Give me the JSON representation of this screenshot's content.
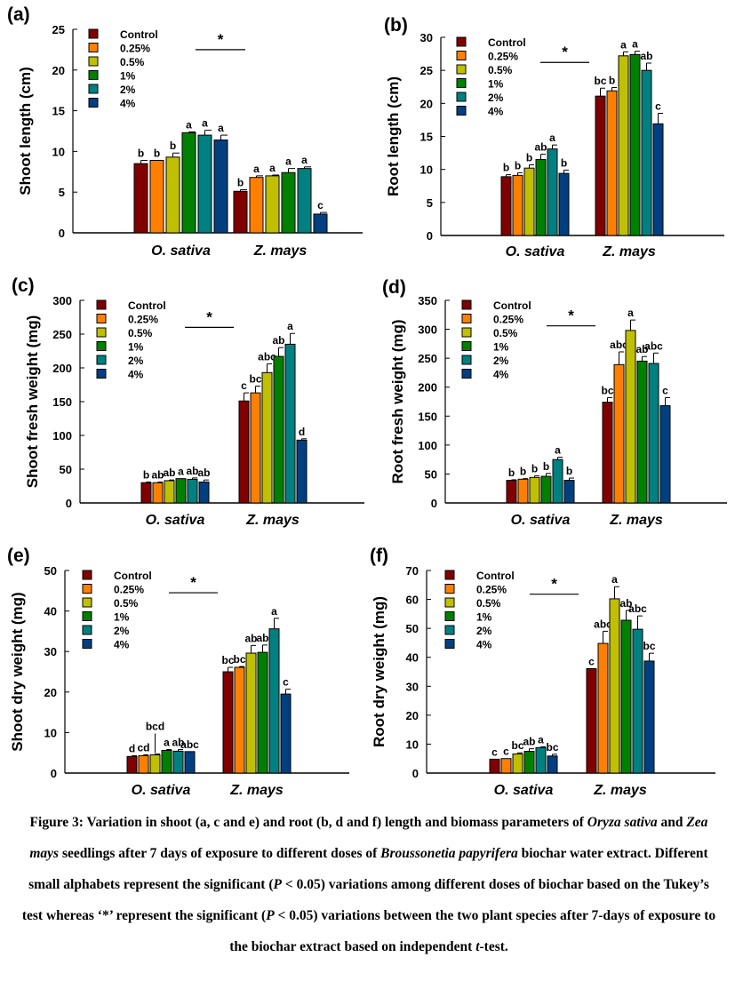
{
  "legend": {
    "entries": [
      "Control",
      "0.25%",
      "0.5%",
      "1%",
      "2%",
      "4%"
    ],
    "colors": [
      "#800000",
      "#ff8000",
      "#c0c000",
      "#008000",
      "#008080",
      "#004080"
    ]
  },
  "categories": [
    "O. sativa",
    "Z. mays"
  ],
  "between_species_marker": "*",
  "chart_data": [
    {
      "id": "a",
      "panel_label": "(a)",
      "type": "bar",
      "ylabel": "Shoot length (cm)",
      "xlabel": "",
      "ylim": [
        0,
        25
      ],
      "yticks": [
        0,
        5,
        10,
        15,
        20,
        25
      ],
      "categories": [
        "O. sativa",
        "Z. mays"
      ],
      "legend_position": "top-left",
      "series": [
        {
          "name": "Control",
          "values": [
            8.5,
            5.1
          ],
          "errors": [
            0.4,
            0.2
          ],
          "letters": [
            "b",
            "b"
          ]
        },
        {
          "name": "0.25%",
          "values": [
            8.9,
            6.8
          ],
          "errors": [
            0.0,
            0.2
          ],
          "letters": [
            "b",
            "a"
          ]
        },
        {
          "name": "0.5%",
          "values": [
            9.3,
            7.0
          ],
          "errors": [
            0.5,
            0.1
          ],
          "letters": [
            "b",
            "a"
          ]
        },
        {
          "name": "1%",
          "values": [
            12.3,
            7.4
          ],
          "errors": [
            0.1,
            0.5
          ],
          "letters": [
            "a",
            "a"
          ]
        },
        {
          "name": "2%",
          "values": [
            12.0,
            7.9
          ],
          "errors": [
            0.6,
            0.2
          ],
          "letters": [
            "a",
            "a"
          ]
        },
        {
          "name": "4%",
          "values": [
            11.4,
            2.3
          ],
          "errors": [
            0.6,
            0.2
          ],
          "letters": [
            "a",
            "c"
          ]
        }
      ],
      "star_y": 22.5
    },
    {
      "id": "b",
      "panel_label": "(b)",
      "type": "bar",
      "ylabel": "Root length (cm)",
      "xlabel": "",
      "ylim": [
        0,
        30
      ],
      "yticks": [
        0,
        5,
        10,
        15,
        20,
        25,
        30
      ],
      "categories": [
        "O. sativa",
        "Z. mays"
      ],
      "legend_position": "top-left",
      "series": [
        {
          "name": "Control",
          "values": [
            8.9,
            21.1
          ],
          "errors": [
            0.3,
            1.2
          ],
          "letters": [
            "b",
            "bc"
          ]
        },
        {
          "name": "0.25%",
          "values": [
            9.1,
            21.9
          ],
          "errors": [
            0.4,
            0.5
          ],
          "letters": [
            "b",
            "b"
          ]
        },
        {
          "name": "0.5%",
          "values": [
            10.2,
            27.2
          ],
          "errors": [
            0.5,
            0.6
          ],
          "letters": [
            "b",
            "a"
          ]
        },
        {
          "name": "1%",
          "values": [
            11.5,
            27.4
          ],
          "errors": [
            0.8,
            0.5
          ],
          "letters": [
            "ab",
            "a"
          ]
        },
        {
          "name": "2%",
          "values": [
            13.1,
            25.0
          ],
          "errors": [
            0.6,
            1.1
          ],
          "letters": [
            "a",
            "ab"
          ]
        },
        {
          "name": "4%",
          "values": [
            9.4,
            16.9
          ],
          "errors": [
            0.5,
            1.6
          ],
          "letters": [
            "b",
            "c"
          ]
        }
      ],
      "star_y": 26.2
    },
    {
      "id": "c",
      "panel_label": "(c)",
      "type": "bar",
      "ylabel": "Shoot fresh weight (mg)",
      "xlabel": "",
      "ylim": [
        0,
        300
      ],
      "yticks": [
        0,
        50,
        100,
        150,
        200,
        250,
        300
      ],
      "categories": [
        "O. sativa",
        "Z. mays"
      ],
      "legend_position": "top-left",
      "series": [
        {
          "name": "Control",
          "values": [
            30,
            151
          ],
          "errors": [
            1,
            12
          ],
          "letters": [
            "b",
            "c"
          ]
        },
        {
          "name": "0.25%",
          "values": [
            30,
            163
          ],
          "errors": [
            1,
            10
          ],
          "letters": [
            "ab",
            "bc"
          ]
        },
        {
          "name": "0.5%",
          "values": [
            33,
            193
          ],
          "errors": [
            1,
            13
          ],
          "letters": [
            "ab",
            "abc"
          ]
        },
        {
          "name": "1%",
          "values": [
            36,
            217
          ],
          "errors": [
            0,
            13
          ],
          "letters": [
            "a",
            "ab"
          ]
        },
        {
          "name": "2%",
          "values": [
            35,
            235
          ],
          "errors": [
            2,
            16
          ],
          "letters": [
            "ab",
            "a"
          ]
        },
        {
          "name": "4%",
          "values": [
            31,
            93
          ],
          "errors": [
            3,
            2
          ],
          "letters": [
            "ab",
            "d"
          ]
        }
      ],
      "star_y": 260
    },
    {
      "id": "d",
      "panel_label": "(d)",
      "type": "bar",
      "ylabel": "Root fresh weight (mg)",
      "xlabel": "",
      "ylim": [
        0,
        350
      ],
      "yticks": [
        0,
        50,
        100,
        150,
        200,
        250,
        300,
        350
      ],
      "categories": [
        "O. sativa",
        "Z. mays"
      ],
      "legend_position": "top-left",
      "series": [
        {
          "name": "Control",
          "values": [
            39,
            174
          ],
          "errors": [
            1,
            8
          ],
          "letters": [
            "b",
            "bc"
          ]
        },
        {
          "name": "0.25%",
          "values": [
            41,
            239
          ],
          "errors": [
            1,
            22
          ],
          "letters": [
            "b",
            "abc"
          ]
        },
        {
          "name": "0.5%",
          "values": [
            44,
            298
          ],
          "errors": [
            3,
            18
          ],
          "letters": [
            "b",
            "a"
          ]
        },
        {
          "name": "1%",
          "values": [
            46,
            245
          ],
          "errors": [
            5,
            8
          ],
          "letters": [
            "b",
            "ab"
          ]
        },
        {
          "name": "2%",
          "values": [
            75,
            241
          ],
          "errors": [
            4,
            18
          ],
          "letters": [
            "a",
            "abc"
          ]
        },
        {
          "name": "4%",
          "values": [
            39,
            168
          ],
          "errors": [
            4,
            14
          ],
          "letters": [
            "b",
            "c"
          ]
        }
      ],
      "star_y": 306
    },
    {
      "id": "e",
      "panel_label": "(e)",
      "type": "bar",
      "ylabel": "Shoot dry weight (mg)",
      "xlabel": "",
      "ylim": [
        0,
        50
      ],
      "yticks": [
        0,
        10,
        20,
        30,
        40,
        50
      ],
      "categories": [
        "O. sativa",
        "Z. mays"
      ],
      "legend_position": "top-left",
      "series": [
        {
          "name": "Control",
          "values": [
            4.1,
            25.0
          ],
          "errors": [
            0.2,
            1.1
          ],
          "letters": [
            "d",
            "bc"
          ]
        },
        {
          "name": "0.25%",
          "values": [
            4.3,
            26.1
          ],
          "errors": [
            0.2,
            0.2
          ],
          "letters": [
            "cd",
            "bc"
          ]
        },
        {
          "name": "0.5%",
          "values": [
            4.5,
            29.6
          ],
          "errors": [
            0.2,
            1.9
          ],
          "letters": [
            "bcd",
            "ab"
          ]
        },
        {
          "name": "1%",
          "values": [
            5.6,
            29.8
          ],
          "errors": [
            0.2,
            1.8
          ],
          "letters": [
            "a",
            "ab"
          ]
        },
        {
          "name": "2%",
          "values": [
            5.4,
            35.6
          ],
          "errors": [
            0.4,
            2.6
          ],
          "letters": [
            "ab",
            "a"
          ]
        },
        {
          "name": "4%",
          "values": [
            5.3,
            19.5
          ],
          "errors": [
            0.0,
            1.2
          ],
          "letters": [
            "abc",
            "c"
          ]
        }
      ],
      "star_y": 44.5
    },
    {
      "id": "f",
      "panel_label": "(f)",
      "type": "bar",
      "ylabel": "Root dry weight (mg)",
      "xlabel": "",
      "ylim": [
        0,
        70
      ],
      "yticks": [
        0,
        10,
        20,
        30,
        40,
        50,
        60,
        70
      ],
      "categories": [
        "O. sativa",
        "Z. mays"
      ],
      "legend_position": "top-left",
      "series": [
        {
          "name": "Control",
          "values": [
            4.8,
            36.1
          ],
          "errors": [
            0.0,
            0.0
          ],
          "letters": [
            "c",
            "c"
          ]
        },
        {
          "name": "0.25%",
          "values": [
            5.0,
            44.8
          ],
          "errors": [
            0.0,
            4.2
          ],
          "letters": [
            "c",
            "abc"
          ]
        },
        {
          "name": "0.5%",
          "values": [
            6.6,
            60.2
          ],
          "errors": [
            0.4,
            4.2
          ],
          "letters": [
            "bc",
            "a"
          ]
        },
        {
          "name": "1%",
          "values": [
            7.5,
            52.8
          ],
          "errors": [
            0.9,
            3.4
          ],
          "letters": [
            "ab",
            "ab"
          ]
        },
        {
          "name": "2%",
          "values": [
            8.8,
            49.7
          ],
          "errors": [
            0.3,
            4.6
          ],
          "letters": [
            "a",
            "abc"
          ]
        },
        {
          "name": "4%",
          "values": [
            5.9,
            38.7
          ],
          "errors": [
            0.6,
            2.7
          ],
          "letters": [
            "bc",
            "bc"
          ]
        }
      ],
      "star_y": 61.8
    }
  ],
  "caption": {
    "segments": [
      {
        "t": "Figure 3: Variation in shoot (a, c and e) and root (b, d and f) length and biomass parameters of ",
        "i": false
      },
      {
        "t": "Oryza sativa",
        "i": true
      },
      {
        "t": " and ",
        "i": false
      },
      {
        "t": "Zea mays",
        "i": true
      },
      {
        "t": " seedlings after 7 days of exposure to different doses of ",
        "i": false
      },
      {
        "t": "Broussonetia papyrifera",
        "i": true
      },
      {
        "t": " biochar water extract. Different small alphabets represent the significant (",
        "i": false
      },
      {
        "t": "P",
        "i": true
      },
      {
        "t": " < 0.05) variations among different doses of biochar based on the Tukey’s test whereas ‘*’ represent the significant (",
        "i": false
      },
      {
        "t": "P",
        "i": true
      },
      {
        "t": " < 0.05) variations between the two plant species after 7-days of exposure to the biochar extract based on independent ",
        "i": false
      },
      {
        "t": "t",
        "i": true
      },
      {
        "t": "-test.",
        "i": false
      }
    ]
  }
}
